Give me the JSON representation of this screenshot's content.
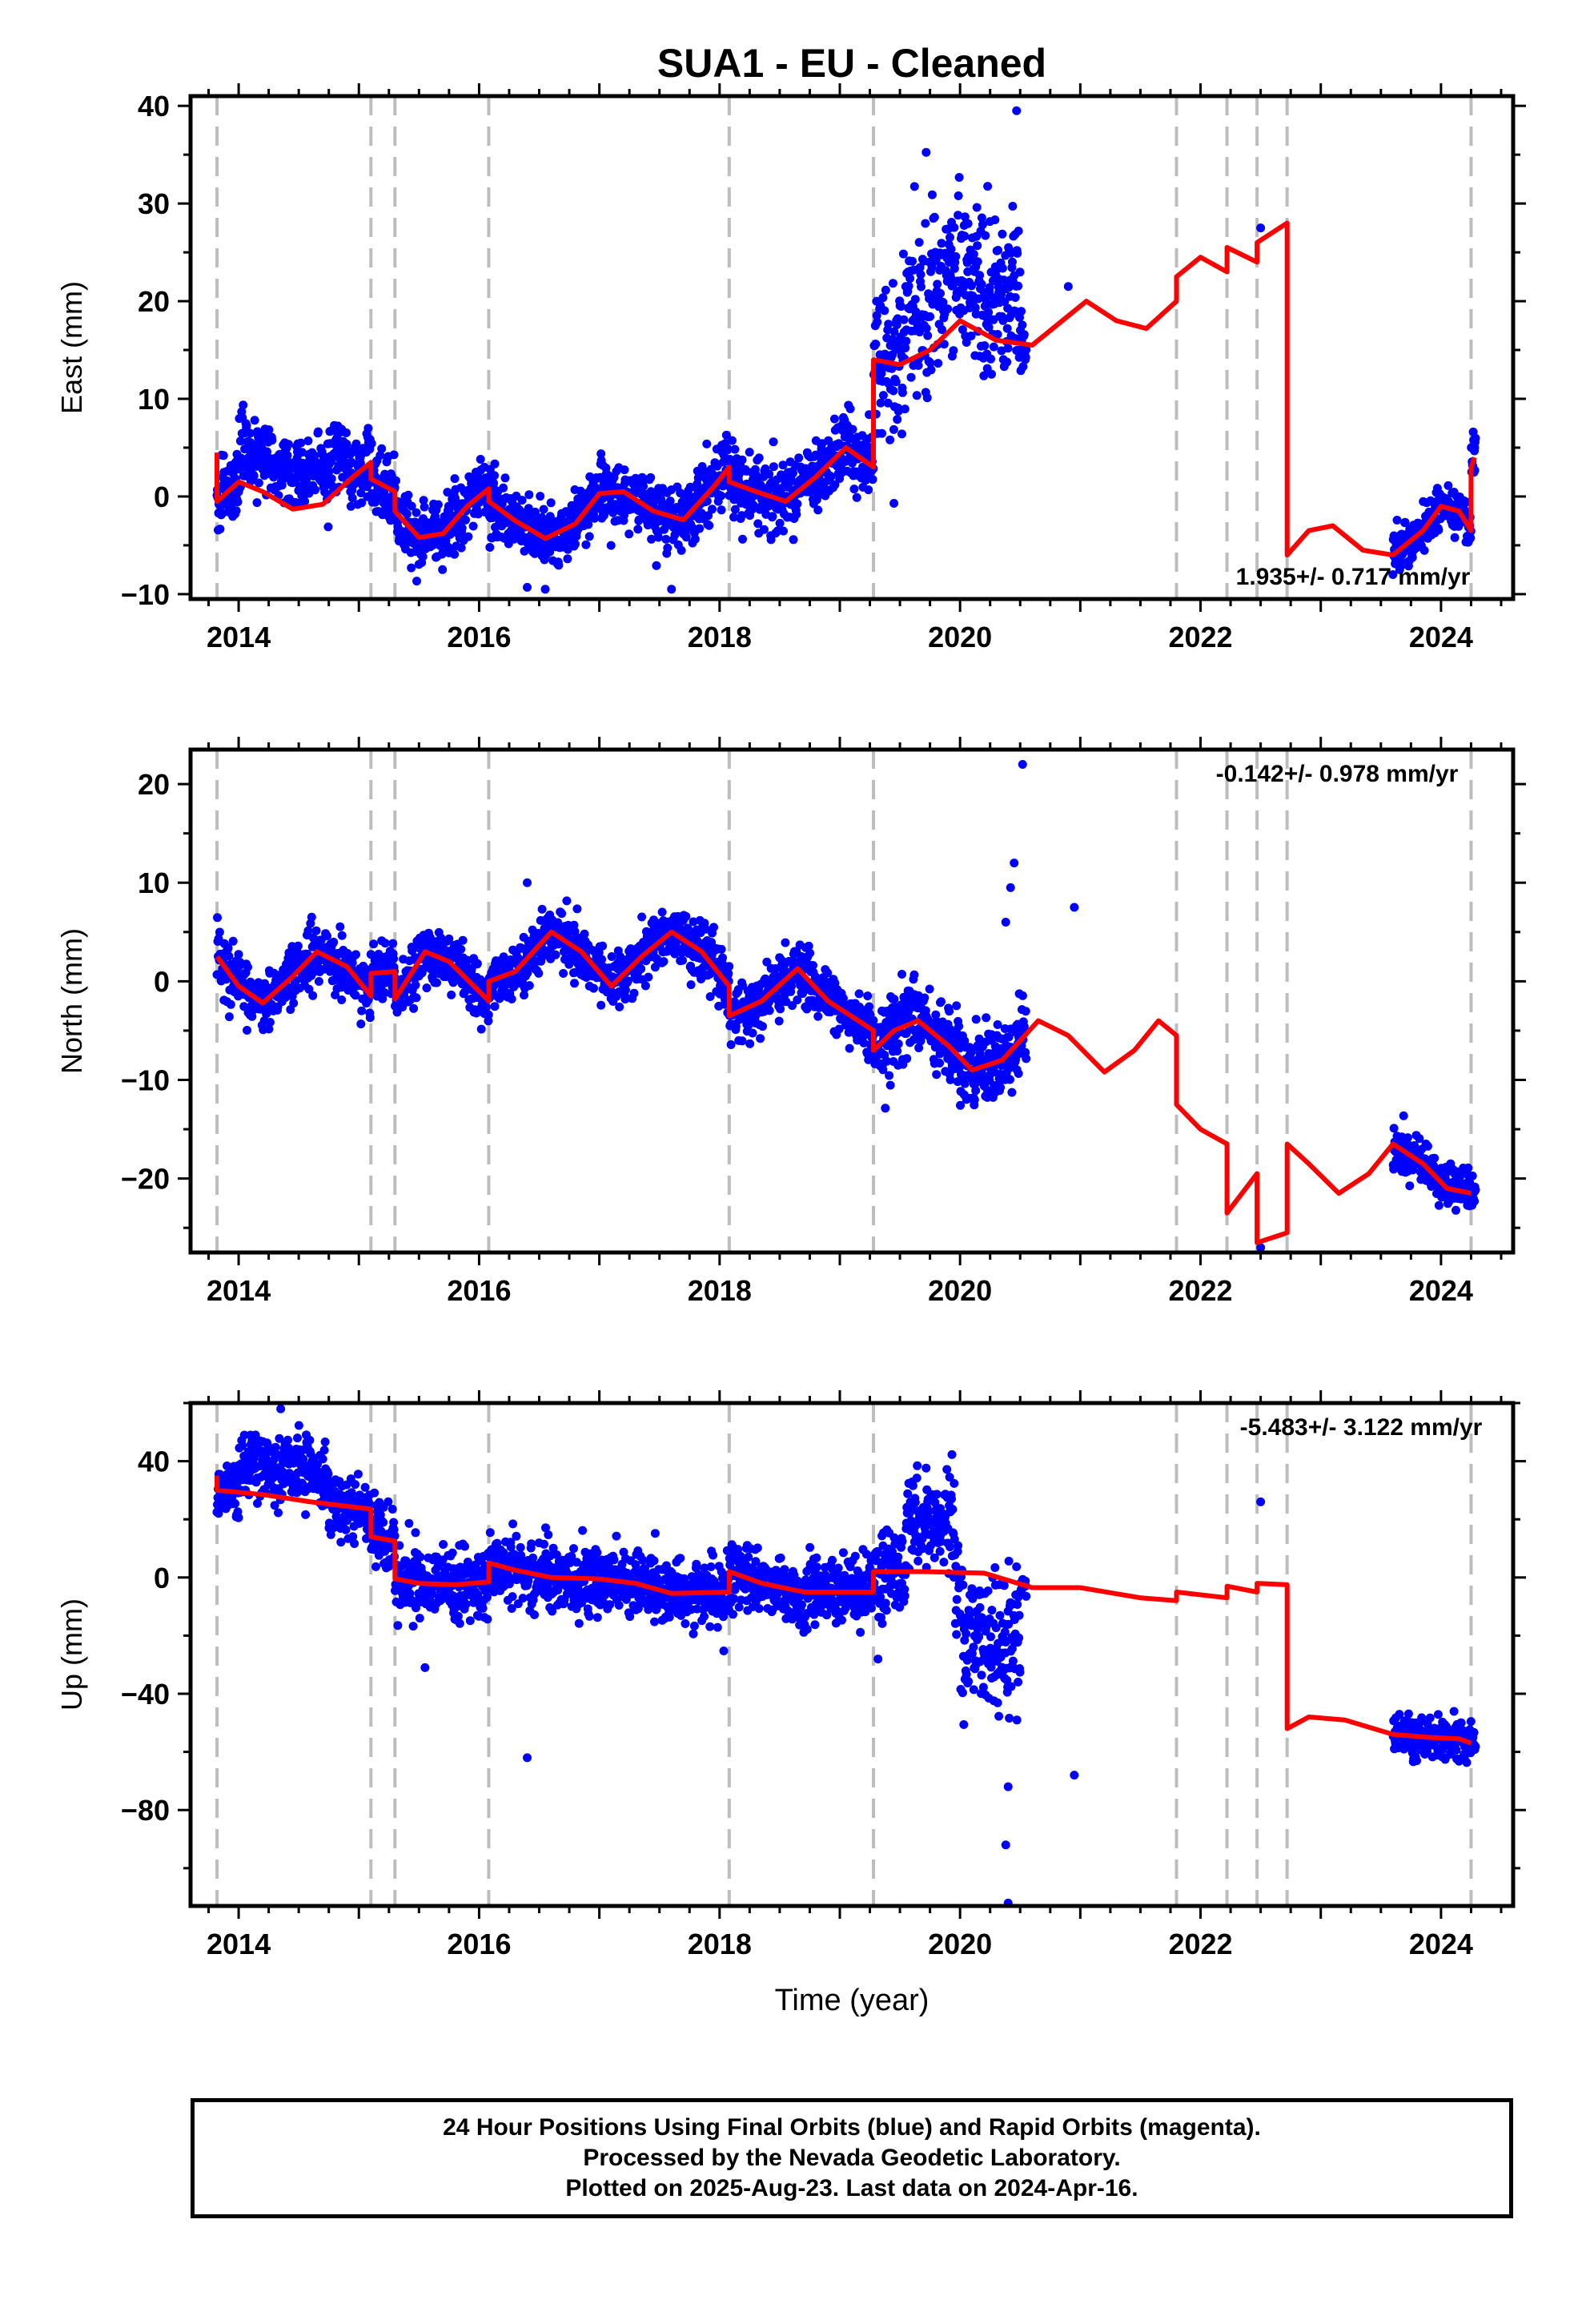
{
  "page": {
    "title": "SUA1  - EU - Cleaned",
    "footer_lines": [
      "24 Hour Positions Using Final Orbits (blue) and Rapid Orbits (magenta).",
      "Processed by the Nevada Geodetic Laboratory.",
      "Plotted on 2025-Aug-23. Last data on 2024-Apr-16."
    ]
  },
  "colors": {
    "data": "#0000ff",
    "model": "#ff0000",
    "breaks": "#bdbdbd",
    "frame": "#000000"
  },
  "chart_data": [
    {
      "type": "scatter",
      "name": "east",
      "ylabel": "East (mm)",
      "xlabel": "",
      "xlim": [
        2013.6,
        2024.6
      ],
      "ylim": [
        -10.5,
        41
      ],
      "xticks": [
        2014,
        2016,
        2018,
        2020,
        2022,
        2024
      ],
      "yticks": [
        -10,
        0,
        10,
        20,
        30,
        40
      ],
      "rate_label": "1.935+/- 0.717 mm/yr",
      "rate_position": "bottom-right",
      "breaks": [
        2013.82,
        2015.1,
        2015.3,
        2016.08,
        2018.08,
        2019.28,
        2021.8,
        2022.22,
        2022.47,
        2022.72,
        2024.25
      ],
      "model": [
        [
          2013.82,
          4.5
        ],
        [
          2013.82,
          -0.5
        ],
        [
          2014.0,
          1.5
        ],
        [
          2014.2,
          0.5
        ],
        [
          2014.45,
          -1.3
        ],
        [
          2014.7,
          -0.8
        ],
        [
          2014.95,
          2.0
        ],
        [
          2015.1,
          3.5
        ],
        [
          2015.1,
          1.8
        ],
        [
          2015.3,
          0.5
        ],
        [
          2015.3,
          -1.5
        ],
        [
          2015.5,
          -4.2
        ],
        [
          2015.7,
          -3.8
        ],
        [
          2015.9,
          -1.0
        ],
        [
          2016.08,
          0.8
        ],
        [
          2016.08,
          -0.5
        ],
        [
          2016.3,
          -2.5
        ],
        [
          2016.55,
          -4.3
        ],
        [
          2016.8,
          -2.8
        ],
        [
          2017.0,
          0.3
        ],
        [
          2017.2,
          0.5
        ],
        [
          2017.45,
          -1.5
        ],
        [
          2017.7,
          -2.4
        ],
        [
          2017.95,
          1.0
        ],
        [
          2018.08,
          3.0
        ],
        [
          2018.08,
          1.5
        ],
        [
          2018.3,
          0.5
        ],
        [
          2018.55,
          -0.5
        ],
        [
          2018.8,
          2.0
        ],
        [
          2019.05,
          5.0
        ],
        [
          2019.28,
          3.0
        ],
        [
          2019.28,
          14.0
        ],
        [
          2019.5,
          13.5
        ],
        [
          2019.75,
          15.0
        ],
        [
          2020.0,
          18.0
        ],
        [
          2020.3,
          16.0
        ],
        [
          2020.6,
          15.5
        ],
        [
          2020.85,
          18.0
        ],
        [
          2021.05,
          20.0
        ],
        [
          2021.3,
          18.0
        ],
        [
          2021.55,
          17.2
        ],
        [
          2021.8,
          20.0
        ],
        [
          2021.8,
          22.5
        ],
        [
          2022.0,
          24.5
        ],
        [
          2022.22,
          23.0
        ],
        [
          2022.22,
          25.5
        ],
        [
          2022.47,
          24.0
        ],
        [
          2022.47,
          26.0
        ],
        [
          2022.72,
          28.0
        ],
        [
          2022.72,
          -6.0
        ],
        [
          2022.9,
          -3.5
        ],
        [
          2023.1,
          -3.0
        ],
        [
          2023.35,
          -5.5
        ],
        [
          2023.6,
          -6.0
        ],
        [
          2023.85,
          -3.5
        ],
        [
          2024.0,
          -1.0
        ],
        [
          2024.15,
          -1.5
        ],
        [
          2024.25,
          -3.5
        ],
        [
          2024.25,
          3.0
        ],
        [
          2024.28,
          4.0
        ]
      ],
      "outliers": [
        [
          2020.47,
          39.5
        ],
        [
          2020.9,
          21.5
        ],
        [
          2022.5,
          27.5
        ],
        [
          2019.45,
          -0.7
        ],
        [
          2016.55,
          -9.5
        ],
        [
          2017.6,
          -9.5
        ],
        [
          2016.4,
          -9.3
        ],
        [
          2023.6,
          -8.0
        ],
        [
          2024.28,
          5.0
        ]
      ]
    },
    {
      "type": "scatter",
      "name": "north",
      "ylabel": "North (mm)",
      "xlabel": "",
      "xlim": [
        2013.6,
        2024.6
      ],
      "ylim": [
        -27.5,
        23.5
      ],
      "xticks": [
        2014,
        2016,
        2018,
        2020,
        2022,
        2024
      ],
      "yticks": [
        -20,
        -10,
        0,
        10,
        20
      ],
      "rate_label": "-0.142+/- 0.978 mm/yr",
      "rate_position": "top-right",
      "breaks": [
        2013.82,
        2015.1,
        2015.3,
        2016.08,
        2018.08,
        2019.28,
        2021.8,
        2022.22,
        2022.47,
        2022.72,
        2024.25
      ],
      "model": [
        [
          2013.82,
          2.5
        ],
        [
          2014.0,
          -0.5
        ],
        [
          2014.2,
          -2.2
        ],
        [
          2014.45,
          0.5
        ],
        [
          2014.65,
          3.0
        ],
        [
          2014.9,
          1.5
        ],
        [
          2015.1,
          -1.5
        ],
        [
          2015.1,
          0.8
        ],
        [
          2015.3,
          1.0
        ],
        [
          2015.3,
          -1.8
        ],
        [
          2015.55,
          3.0
        ],
        [
          2015.75,
          2.0
        ],
        [
          2016.08,
          -2.0
        ],
        [
          2016.08,
          0.0
        ],
        [
          2016.3,
          1.0
        ],
        [
          2016.6,
          5.0
        ],
        [
          2016.85,
          3.0
        ],
        [
          2017.1,
          -0.5
        ],
        [
          2017.35,
          2.5
        ],
        [
          2017.6,
          5.0
        ],
        [
          2017.85,
          3.0
        ],
        [
          2018.08,
          -0.5
        ],
        [
          2018.08,
          -3.5
        ],
        [
          2018.35,
          -2.0
        ],
        [
          2018.65,
          1.3
        ],
        [
          2018.9,
          -2.0
        ],
        [
          2019.28,
          -5.0
        ],
        [
          2019.28,
          -7.0
        ],
        [
          2019.45,
          -5.0
        ],
        [
          2019.65,
          -4.0
        ],
        [
          2019.9,
          -6.5
        ],
        [
          2020.1,
          -9.0
        ],
        [
          2020.35,
          -8.0
        ],
        [
          2020.65,
          -4.0
        ],
        [
          2020.9,
          -5.5
        ],
        [
          2021.2,
          -9.2
        ],
        [
          2021.45,
          -7.0
        ],
        [
          2021.65,
          -4.0
        ],
        [
          2021.8,
          -5.5
        ],
        [
          2021.8,
          -12.5
        ],
        [
          2022.0,
          -15.0
        ],
        [
          2022.22,
          -16.5
        ],
        [
          2022.22,
          -23.5
        ],
        [
          2022.47,
          -19.5
        ],
        [
          2022.47,
          -26.5
        ],
        [
          2022.72,
          -25.5
        ],
        [
          2022.72,
          -16.5
        ],
        [
          2022.9,
          -18.5
        ],
        [
          2023.15,
          -21.5
        ],
        [
          2023.4,
          -19.5
        ],
        [
          2023.6,
          -16.5
        ],
        [
          2023.85,
          -18.5
        ],
        [
          2024.05,
          -21.0
        ],
        [
          2024.25,
          -21.5
        ]
      ],
      "outliers": [
        [
          2020.52,
          22.0
        ],
        [
          2020.45,
          12.0
        ],
        [
          2020.42,
          9.5
        ],
        [
          2020.38,
          6.0
        ],
        [
          2020.95,
          7.5
        ],
        [
          2016.4,
          10.0
        ],
        [
          2022.5,
          -27.0
        ]
      ]
    },
    {
      "type": "scatter",
      "name": "up",
      "ylabel": "Up (mm)",
      "xlabel": "Time (year)",
      "xlim": [
        2013.6,
        2024.6
      ],
      "ylim": [
        -113,
        60
      ],
      "xticks": [
        2014,
        2016,
        2018,
        2020,
        2022,
        2024
      ],
      "yticks": [
        -80,
        -40,
        0,
        40
      ],
      "rate_label": "-5.483+/- 3.122 mm/yr",
      "rate_position": "top-right",
      "breaks": [
        2013.82,
        2015.1,
        2015.3,
        2016.08,
        2018.08,
        2019.28,
        2021.8,
        2022.22,
        2022.47,
        2022.72,
        2024.25
      ],
      "model": [
        [
          2013.82,
          35.0
        ],
        [
          2013.82,
          30.0
        ],
        [
          2014.2,
          28.5
        ],
        [
          2014.6,
          26.0
        ],
        [
          2015.1,
          23.5
        ],
        [
          2015.1,
          14.0
        ],
        [
          2015.3,
          12.5
        ],
        [
          2015.3,
          -0.5
        ],
        [
          2015.5,
          -2.0
        ],
        [
          2015.8,
          -2.5
        ],
        [
          2016.08,
          -1.5
        ],
        [
          2016.08,
          5.0
        ],
        [
          2016.3,
          2.5
        ],
        [
          2016.6,
          0.0
        ],
        [
          2017.0,
          -0.5
        ],
        [
          2017.3,
          -2.0
        ],
        [
          2017.6,
          -5.5
        ],
        [
          2018.08,
          -5.0
        ],
        [
          2018.08,
          2.0
        ],
        [
          2018.35,
          -2.0
        ],
        [
          2018.7,
          -5.0
        ],
        [
          2019.28,
          -5.0
        ],
        [
          2019.28,
          2.0
        ],
        [
          2019.7,
          2.0
        ],
        [
          2020.2,
          1.5
        ],
        [
          2020.6,
          -3.5
        ],
        [
          2021.0,
          -3.5
        ],
        [
          2021.5,
          -7.0
        ],
        [
          2021.8,
          -8.0
        ],
        [
          2021.8,
          -5.0
        ],
        [
          2022.22,
          -7.0
        ],
        [
          2022.22,
          -3.0
        ],
        [
          2022.47,
          -5.0
        ],
        [
          2022.47,
          -2.0
        ],
        [
          2022.72,
          -2.5
        ],
        [
          2022.72,
          -52.0
        ],
        [
          2022.9,
          -48.0
        ],
        [
          2023.2,
          -49.0
        ],
        [
          2023.6,
          -54.0
        ],
        [
          2023.9,
          -55.0
        ],
        [
          2024.15,
          -55.5
        ],
        [
          2024.25,
          -57.0
        ]
      ],
      "outliers": [
        [
          2020.4,
          -112.0
        ],
        [
          2020.38,
          -92.0
        ],
        [
          2020.4,
          -72.0
        ],
        [
          2020.95,
          -68.0
        ],
        [
          2016.4,
          -62.0
        ],
        [
          2022.5,
          26.0
        ],
        [
          2015.55,
          -31.0
        ],
        [
          2014.35,
          58.0
        ]
      ]
    }
  ]
}
